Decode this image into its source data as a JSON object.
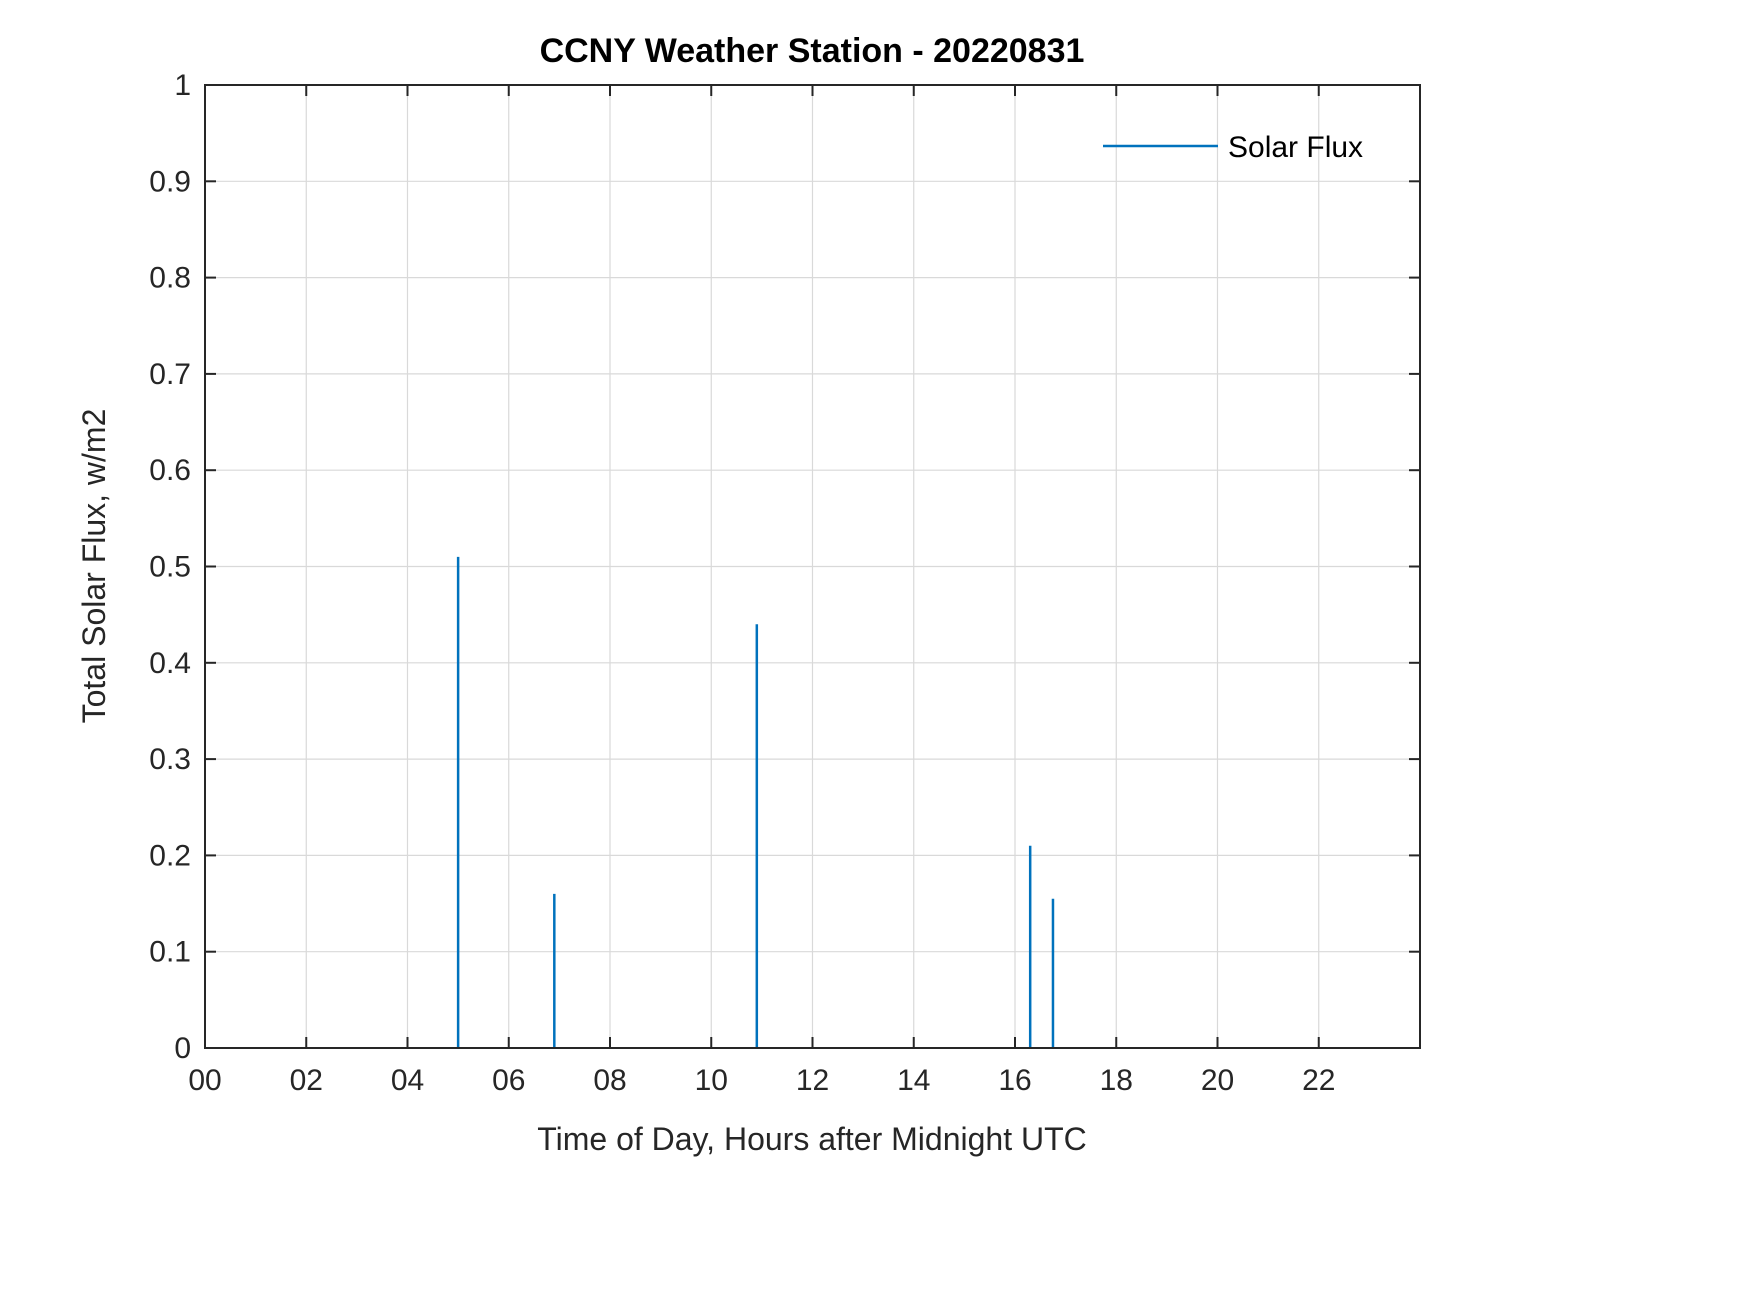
{
  "window": {
    "title": "CCNY Weather Station - 20220831"
  },
  "chart_data": {
    "type": "line",
    "title": "CCNY Weather Station - 20220831",
    "xlabel": "Time of Day, Hours after Midnight UTC",
    "ylabel": "Total Solar Flux, w/m2",
    "xlim": [
      0,
      24
    ],
    "ylim": [
      0,
      1
    ],
    "x_ticks": [
      0,
      2,
      4,
      6,
      8,
      10,
      12,
      14,
      16,
      18,
      20,
      22
    ],
    "x_tick_labels": [
      "00",
      "02",
      "04",
      "06",
      "08",
      "10",
      "12",
      "14",
      "16",
      "18",
      "20",
      "22"
    ],
    "y_ticks": [
      0,
      0.1,
      0.2,
      0.3,
      0.4,
      0.5,
      0.6,
      0.7,
      0.8,
      0.9,
      1
    ],
    "y_tick_labels": [
      "0",
      "0.1",
      "0.2",
      "0.3",
      "0.4",
      "0.5",
      "0.6",
      "0.7",
      "0.8",
      "0.9",
      "1"
    ],
    "grid": true,
    "colors": {
      "series_blue": "#0072BD",
      "grid": "#d9d9d9",
      "axis": "#262626"
    },
    "legend": {
      "position": "northeast",
      "entries": [
        {
          "label": "Solar Flux",
          "color": "#0072BD"
        }
      ]
    },
    "series": [
      {
        "name": "Solar Flux",
        "color": "#0072BD",
        "spikes": [
          {
            "x": 5.0,
            "y": 0.51
          },
          {
            "x": 6.9,
            "y": 0.16
          },
          {
            "x": 10.9,
            "y": 0.44
          },
          {
            "x": 16.3,
            "y": 0.21
          },
          {
            "x": 16.75,
            "y": 0.155
          }
        ]
      }
    ]
  }
}
